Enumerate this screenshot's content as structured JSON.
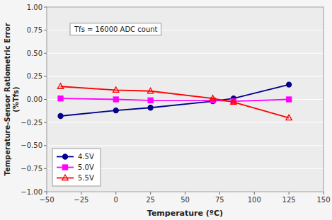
{
  "chart_data": {
    "type": "line",
    "x_label": "Temperature (ºC)",
    "y_label": "Temperature-Sensor Ratiometric Error\n(%Tfs)",
    "annotation": "Tfs = 16000 ADC count",
    "x": [
      -40,
      0,
      25,
      70,
      85,
      125
    ],
    "series": [
      {
        "name": "4.5V",
        "color": "#00008B",
        "marker": "circle",
        "values": [
          -0.18,
          -0.12,
          -0.09,
          -0.02,
          0.01,
          0.16
        ]
      },
      {
        "name": "5.0V",
        "color": "#FF00FF",
        "marker": "square",
        "values": [
          0.01,
          0.0,
          -0.01,
          -0.01,
          -0.02,
          0.0
        ]
      },
      {
        "name": "5.5V",
        "color": "#FF0000",
        "marker": "triangle-open",
        "values": [
          0.14,
          0.1,
          0.09,
          0.01,
          -0.03,
          -0.2
        ]
      }
    ],
    "xlim": [
      -50,
      150
    ],
    "xticks": [
      {
        "value": -50,
        "label": "−50"
      },
      {
        "value": -25,
        "label": "−25"
      },
      0,
      25,
      50,
      75,
      100,
      125,
      150
    ],
    "ylim": [
      -1.0,
      1.0
    ],
    "yticks": [
      {
        "value": -1.0,
        "label": "−1.00"
      },
      {
        "value": -0.75,
        "label": "−0.75"
      },
      {
        "value": -0.5,
        "label": "−0.50"
      },
      {
        "value": -0.25,
        "label": "−0.25"
      },
      {
        "value": 0.0,
        "label": "0.00"
      },
      0.25,
      {
        "value": 0.5,
        "label": "0.50"
      },
      0.75,
      {
        "value": 1.0,
        "label": "1.00"
      }
    ],
    "grid": "y",
    "legend": "lower left"
  }
}
